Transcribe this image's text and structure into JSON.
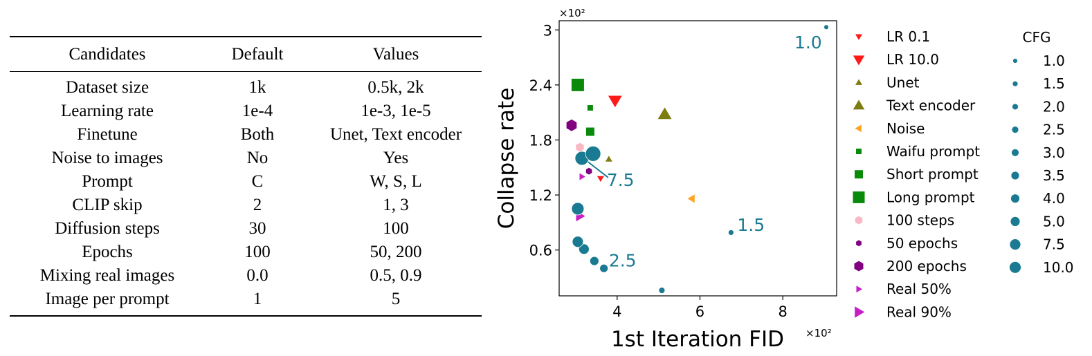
{
  "table": {
    "headers": [
      "Candidates",
      "Default",
      "Values"
    ],
    "rows": [
      [
        "Dataset size",
        "1k",
        "0.5k, 2k"
      ],
      [
        "Learning rate",
        "1e-4",
        "1e-3, 1e-5"
      ],
      [
        "Finetune",
        "Both",
        "Unet, Text encoder"
      ],
      [
        "Noise to images",
        "No",
        "Yes"
      ],
      [
        "Prompt",
        "C",
        "W, S, L"
      ],
      [
        "CLIP skip",
        "2",
        "1, 3"
      ],
      [
        "Diffusion steps",
        "30",
        "100"
      ],
      [
        "Epochs",
        "100",
        "50, 200"
      ],
      [
        "Mixing real images",
        "0.0",
        "0.5, 0.9"
      ],
      [
        "Image per prompt",
        "1",
        "5"
      ]
    ]
  },
  "chart_data": {
    "type": "scatter",
    "xlabel": "1st Iteration FID",
    "ylabel": "Collapse rate",
    "x_multiplier": "×10²",
    "y_multiplier": "×10²",
    "xlim": [
      2.6,
      9.3
    ],
    "ylim": [
      0.1,
      3.1
    ],
    "xticks": [
      4,
      6,
      8
    ],
    "yticks": [
      0.6,
      1.2,
      1.8,
      2.4,
      3.0
    ],
    "colors": {
      "cfg": "#1a7a92",
      "lr": "#ff1a1a",
      "unet": "#7c7c10",
      "noise": "#ffa420",
      "prompt": "#0a8a0a",
      "steps": "#f9b8c4",
      "epochs": "#800080",
      "real": "#c81ec8"
    },
    "series": [
      {
        "name": "LR 0.1",
        "marker": "triangle-down",
        "color_key": "lr",
        "size": 9,
        "points": [
          [
            3.6,
            1.38
          ]
        ]
      },
      {
        "name": "LR 10.0",
        "marker": "triangle-down",
        "color_key": "lr",
        "size": 18,
        "points": [
          [
            3.95,
            2.23
          ]
        ]
      },
      {
        "name": "Unet",
        "marker": "triangle-up",
        "color_key": "unet",
        "size": 9,
        "points": [
          [
            3.8,
            1.59
          ]
        ]
      },
      {
        "name": "Text encoder",
        "marker": "triangle-up",
        "color_key": "unet",
        "size": 18,
        "points": [
          [
            5.15,
            2.08
          ]
        ]
      },
      {
        "name": "Noise",
        "marker": "triangle-left",
        "color_key": "noise",
        "size": 11,
        "points": [
          [
            5.8,
            1.16
          ]
        ]
      },
      {
        "name": "Waifu prompt",
        "marker": "square",
        "color_key": "prompt",
        "size": 8,
        "points": [
          [
            3.35,
            2.15
          ]
        ]
      },
      {
        "name": "Short prompt",
        "marker": "square",
        "color_key": "prompt",
        "size": 12,
        "points": [
          [
            3.35,
            1.89
          ]
        ]
      },
      {
        "name": "Long prompt",
        "marker": "square",
        "color_key": "prompt",
        "size": 18,
        "points": [
          [
            3.05,
            2.4
          ]
        ]
      },
      {
        "name": "100 steps",
        "marker": "hexagon",
        "color_key": "steps",
        "size": 13,
        "points": [
          [
            3.1,
            1.72
          ]
        ]
      },
      {
        "name": "50 epochs",
        "marker": "hexagon",
        "color_key": "epochs",
        "size": 10,
        "points": [
          [
            3.32,
            1.46
          ]
        ]
      },
      {
        "name": "200 epochs",
        "marker": "hexagon",
        "color_key": "epochs",
        "size": 17,
        "points": [
          [
            2.9,
            1.96
          ]
        ]
      },
      {
        "name": "Real 50%",
        "marker": "triangle-right",
        "color_key": "real",
        "size": 9,
        "points": [
          [
            3.15,
            1.4
          ]
        ]
      },
      {
        "name": "Real 90%",
        "marker": "triangle-right",
        "color_key": "real",
        "size": 14,
        "points": [
          [
            3.1,
            0.97
          ]
        ]
      }
    ],
    "cfg_series": {
      "name": "CFG",
      "color_key": "cfg",
      "points": [
        {
          "cfg": "1.0",
          "x": 9.05,
          "y": 3.03,
          "size": 7
        },
        {
          "cfg": "1.5",
          "x": 6.75,
          "y": 0.79,
          "size": 8
        },
        {
          "cfg": "1.5",
          "x": 5.08,
          "y": 0.16,
          "size": 9
        },
        {
          "cfg": "2.5",
          "x": 3.68,
          "y": 0.4,
          "size": 12
        },
        {
          "cfg": "2.5",
          "x": 3.45,
          "y": 0.48,
          "size": 13
        },
        {
          "cfg": "2.5",
          "x": 3.2,
          "y": 0.61,
          "size": 15
        },
        {
          "cfg": "2.5",
          "x": 3.05,
          "y": 0.69,
          "size": 16
        },
        {
          "cfg": "3.0",
          "x": 3.05,
          "y": 1.05,
          "size": 18
        },
        {
          "cfg": "7.5",
          "x": 3.15,
          "y": 1.6,
          "size": 20
        },
        {
          "cfg": "10.0",
          "x": 3.42,
          "y": 1.65,
          "size": 22
        }
      ]
    },
    "annotations": [
      {
        "text": "1.0",
        "x": 8.28,
        "y": 2.8
      },
      {
        "text": "1.5",
        "x": 6.9,
        "y": 0.81
      },
      {
        "text": "2.5",
        "x": 3.8,
        "y": 0.42
      },
      {
        "text": "7.5",
        "x": 3.75,
        "y": 1.3
      }
    ],
    "legend_left": [
      {
        "label": "LR 0.1",
        "marker": "triangle-down",
        "color_key": "lr",
        "size": 9
      },
      {
        "label": "LR 10.0",
        "marker": "triangle-down",
        "color_key": "lr",
        "size": 15
      },
      {
        "label": "Unet",
        "marker": "triangle-up",
        "color_key": "unet",
        "size": 9
      },
      {
        "label": "Text encoder",
        "marker": "triangle-up",
        "color_key": "unet",
        "size": 15
      },
      {
        "label": "Noise",
        "marker": "triangle-left",
        "color_key": "noise",
        "size": 10
      },
      {
        "label": "Waifu prompt",
        "marker": "square",
        "color_key": "prompt",
        "size": 8
      },
      {
        "label": "Short prompt",
        "marker": "square",
        "color_key": "prompt",
        "size": 12
      },
      {
        "label": "Long prompt",
        "marker": "square",
        "color_key": "prompt",
        "size": 17
      },
      {
        "label": "100 steps",
        "marker": "hexagon",
        "color_key": "steps",
        "size": 12
      },
      {
        "label": "50 epochs",
        "marker": "hexagon",
        "color_key": "epochs",
        "size": 9
      },
      {
        "label": "200 epochs",
        "marker": "hexagon",
        "color_key": "epochs",
        "size": 15
      },
      {
        "label": "Real 50%",
        "marker": "triangle-right",
        "color_key": "real",
        "size": 9
      },
      {
        "label": "Real 90%",
        "marker": "triangle-right",
        "color_key": "real",
        "size": 15
      }
    ],
    "legend_cfg": {
      "title": "CFG",
      "items": [
        {
          "label": "1.0",
          "size": 7
        },
        {
          "label": "1.5",
          "size": 8
        },
        {
          "label": "2.0",
          "size": 9
        },
        {
          "label": "2.5",
          "size": 10
        },
        {
          "label": "3.0",
          "size": 11
        },
        {
          "label": "3.5",
          "size": 12
        },
        {
          "label": "4.0",
          "size": 13
        },
        {
          "label": "5.0",
          "size": 14
        },
        {
          "label": "7.5",
          "size": 16
        },
        {
          "label": "10.0",
          "size": 17
        }
      ]
    }
  }
}
